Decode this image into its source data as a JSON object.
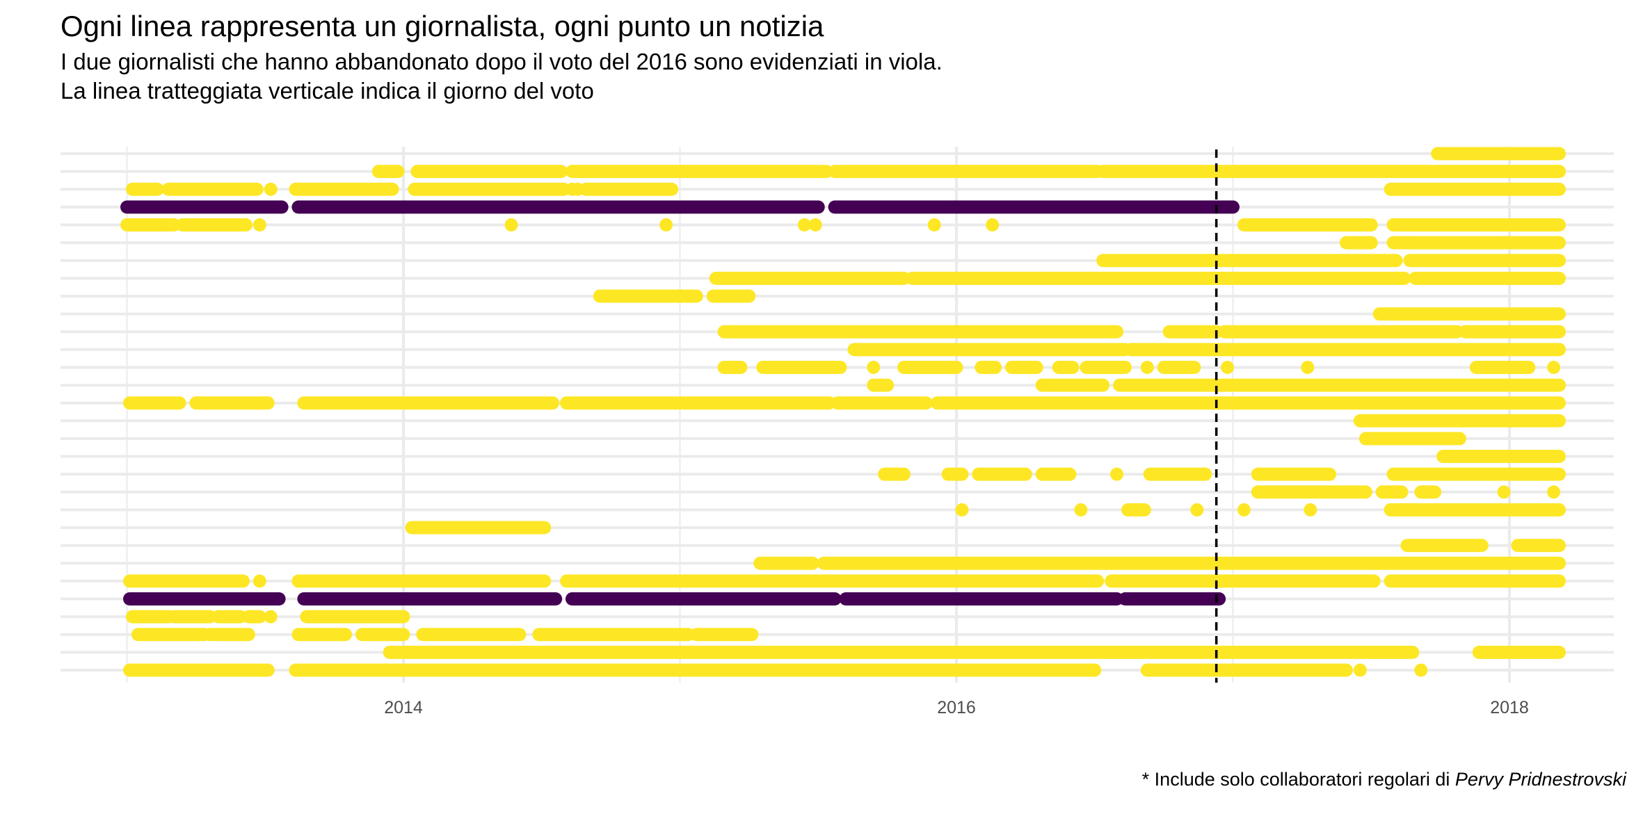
{
  "chart_data": {
    "type": "scatter",
    "title": "Ogni linea rappresenta un giornalista, ogni punto un notizia",
    "subtitle_lines": [
      "I due giornalisti che hanno abbandonato dopo il voto del 2016 sono evidenziati in viola.",
      "La linea tratteggiata verticale indica il giorno del voto"
    ],
    "caption_prefix": "* Include solo collaboratori regolari di ",
    "caption_italic": "Pervy Pridnestrovski",
    "xlabel": "",
    "ylabel": "",
    "xlim": [
      2012.9,
      2018.3
    ],
    "x_ticks": [
      2014,
      2016,
      2018
    ],
    "x_tick_labels": [
      "2014",
      "2016",
      "2018"
    ],
    "minor_x_ticks": [
      2013,
      2015,
      2017
    ],
    "vote_date": 2016.94,
    "grid": true,
    "legend": "none",
    "colors": {
      "highlight": "#440154",
      "normal": "#FDE725",
      "grid": "#EBEBEB",
      "vote_line": "#000000"
    },
    "journalists": [
      {
        "highlight": false,
        "segments": [
          [
            2017.74,
            2018.18
          ]
        ],
        "points": []
      },
      {
        "highlight": false,
        "segments": [
          [
            2013.91,
            2013.98
          ],
          [
            2014.05,
            2014.5
          ],
          [
            2014.51,
            2014.57
          ],
          [
            2014.61,
            2015.53
          ],
          [
            2015.56,
            2016.51
          ],
          [
            2016.53,
            2018.18
          ]
        ],
        "points": []
      },
      {
        "highlight": false,
        "segments": [
          [
            2013.02,
            2013.11
          ],
          [
            2013.15,
            2013.47
          ],
          [
            2013.61,
            2013.96
          ],
          [
            2014.04,
            2014.58
          ],
          [
            2014.66,
            2014.97
          ],
          [
            2017.57,
            2018.18
          ]
        ],
        "points": [
          2013.52,
          2014.61,
          2014.63
        ]
      },
      {
        "highlight": true,
        "segments": [
          [
            2013.0,
            2013.56
          ],
          [
            2013.62,
            2015.5
          ],
          [
            2015.56,
            2017.0
          ]
        ],
        "points": []
      },
      {
        "highlight": false,
        "segments": [
          [
            2013.0,
            2013.17
          ],
          [
            2013.2,
            2013.43
          ],
          [
            2017.04,
            2017.5
          ],
          [
            2017.58,
            2018.18
          ]
        ],
        "points": [
          2013.48,
          2014.39,
          2014.95,
          2015.45,
          2015.49,
          2015.92,
          2016.13
        ]
      },
      {
        "highlight": false,
        "segments": [
          [
            2017.41,
            2017.5
          ],
          [
            2017.58,
            2018.18
          ]
        ],
        "points": []
      },
      {
        "highlight": false,
        "segments": [
          [
            2016.53,
            2017.59
          ],
          [
            2017.64,
            2018.18
          ]
        ],
        "points": []
      },
      {
        "highlight": false,
        "segments": [
          [
            2015.13,
            2015.81
          ],
          [
            2015.84,
            2017.62
          ],
          [
            2017.66,
            2018.18
          ]
        ],
        "points": []
      },
      {
        "highlight": false,
        "segments": [
          [
            2014.71,
            2015.06
          ],
          [
            2015.12,
            2015.25
          ]
        ],
        "points": []
      },
      {
        "highlight": false,
        "segments": [
          [
            2017.53,
            2018.18
          ]
        ],
        "points": []
      },
      {
        "highlight": false,
        "segments": [
          [
            2015.16,
            2016.58
          ],
          [
            2016.77,
            2016.94
          ],
          [
            2016.97,
            2017.81
          ],
          [
            2017.84,
            2018.18
          ]
        ],
        "points": []
      },
      {
        "highlight": false,
        "segments": [
          [
            2015.63,
            2016.61
          ],
          [
            2016.63,
            2018.18
          ]
        ],
        "points": []
      },
      {
        "highlight": false,
        "segments": [
          [
            2015.16,
            2015.22
          ],
          [
            2015.3,
            2015.58
          ],
          [
            2015.81,
            2016.0
          ],
          [
            2016.09,
            2016.14
          ],
          [
            2016.2,
            2016.29
          ],
          [
            2016.37,
            2016.42
          ],
          [
            2016.47,
            2016.61
          ],
          [
            2016.75,
            2016.86
          ],
          [
            2017.88,
            2018.07
          ]
        ],
        "points": [
          2015.7,
          2016.69,
          2016.98,
          2017.27,
          2018.16
        ]
      },
      {
        "highlight": false,
        "segments": [
          [
            2015.7,
            2015.75
          ],
          [
            2016.31,
            2016.53
          ],
          [
            2016.59,
            2018.18
          ]
        ],
        "points": []
      },
      {
        "highlight": false,
        "segments": [
          [
            2013.01,
            2013.19
          ],
          [
            2013.25,
            2013.51
          ],
          [
            2013.64,
            2014.54
          ],
          [
            2014.59,
            2015.54
          ],
          [
            2015.57,
            2015.89
          ],
          [
            2015.93,
            2018.18
          ]
        ],
        "points": []
      },
      {
        "highlight": false,
        "segments": [
          [
            2017.46,
            2018.18
          ]
        ],
        "points": []
      },
      {
        "highlight": false,
        "segments": [
          [
            2017.48,
            2017.82
          ]
        ],
        "points": []
      },
      {
        "highlight": false,
        "segments": [
          [
            2017.76,
            2018.18
          ]
        ],
        "points": []
      },
      {
        "highlight": false,
        "segments": [
          [
            2015.74,
            2015.81
          ],
          [
            2015.97,
            2016.02
          ],
          [
            2016.08,
            2016.25
          ],
          [
            2016.31,
            2016.41
          ],
          [
            2016.7,
            2016.9
          ],
          [
            2017.09,
            2017.35
          ],
          [
            2017.58,
            2018.18
          ]
        ],
        "points": [
          2016.58
        ]
      },
      {
        "highlight": false,
        "segments": [
          [
            2017.09,
            2017.48
          ],
          [
            2017.54,
            2017.61
          ],
          [
            2017.68,
            2017.73
          ]
        ],
        "points": [
          2017.98,
          2018.16
        ]
      },
      {
        "highlight": false,
        "segments": [
          [
            2016.62,
            2016.68
          ],
          [
            2017.57,
            2018.18
          ]
        ],
        "points": [
          2016.02,
          2016.45,
          2016.87,
          2017.04,
          2017.28
        ]
      },
      {
        "highlight": false,
        "segments": [
          [
            2014.03,
            2014.51
          ]
        ],
        "points": []
      },
      {
        "highlight": false,
        "segments": [
          [
            2017.63,
            2017.9
          ],
          [
            2018.03,
            2018.18
          ]
        ],
        "points": []
      },
      {
        "highlight": false,
        "segments": [
          [
            2015.29,
            2015.48
          ],
          [
            2015.52,
            2018.18
          ]
        ],
        "points": []
      },
      {
        "highlight": false,
        "segments": [
          [
            2013.01,
            2013.42
          ],
          [
            2013.62,
            2014.51
          ],
          [
            2014.59,
            2016.51
          ],
          [
            2016.56,
            2017.51
          ],
          [
            2017.57,
            2018.18
          ]
        ],
        "points": [
          2013.48
        ]
      },
      {
        "highlight": true,
        "segments": [
          [
            2013.01,
            2013.55
          ],
          [
            2013.64,
            2014.55
          ],
          [
            2014.61,
            2015.56
          ],
          [
            2015.6,
            2016.58
          ],
          [
            2016.61,
            2016.95
          ]
        ],
        "points": []
      },
      {
        "highlight": false,
        "segments": [
          [
            2013.02,
            2013.15
          ],
          [
            2013.17,
            2013.3
          ],
          [
            2013.33,
            2013.41
          ],
          [
            2013.44,
            2013.48
          ],
          [
            2013.65,
            2014.0
          ]
        ],
        "points": [
          2013.52
        ]
      },
      {
        "highlight": false,
        "segments": [
          [
            2013.04,
            2013.28
          ],
          [
            2013.3,
            2013.44
          ],
          [
            2013.62,
            2013.79
          ],
          [
            2013.85,
            2014.0
          ],
          [
            2014.07,
            2014.42
          ],
          [
            2014.49,
            2015.03
          ],
          [
            2015.06,
            2015.26
          ]
        ],
        "points": []
      },
      {
        "highlight": false,
        "segments": [
          [
            2013.95,
            2017.65
          ],
          [
            2017.89,
            2018.18
          ]
        ],
        "points": []
      },
      {
        "highlight": false,
        "segments": [
          [
            2013.01,
            2013.51
          ],
          [
            2013.61,
            2016.5
          ],
          [
            2016.69,
            2017.41
          ]
        ],
        "points": [
          2017.46,
          2017.68
        ]
      }
    ]
  }
}
